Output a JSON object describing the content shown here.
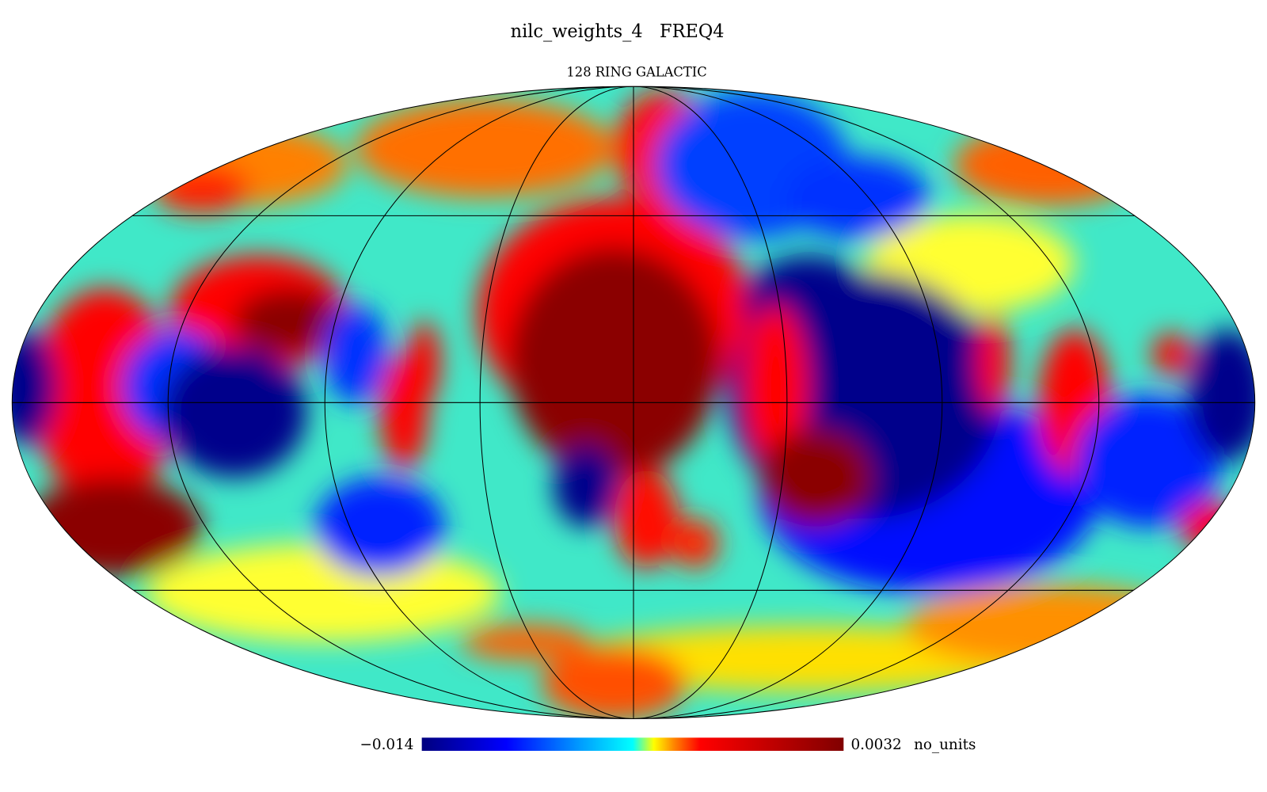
{
  "header": {
    "title": "nilc_weights_4   FREQ4",
    "subtitle": "128 RING GALACTIC"
  },
  "colorbar": {
    "min": {
      "value": -0.014,
      "label": "−0.014"
    },
    "max": 0.0032,
    "unit": "no_units"
  }
}
